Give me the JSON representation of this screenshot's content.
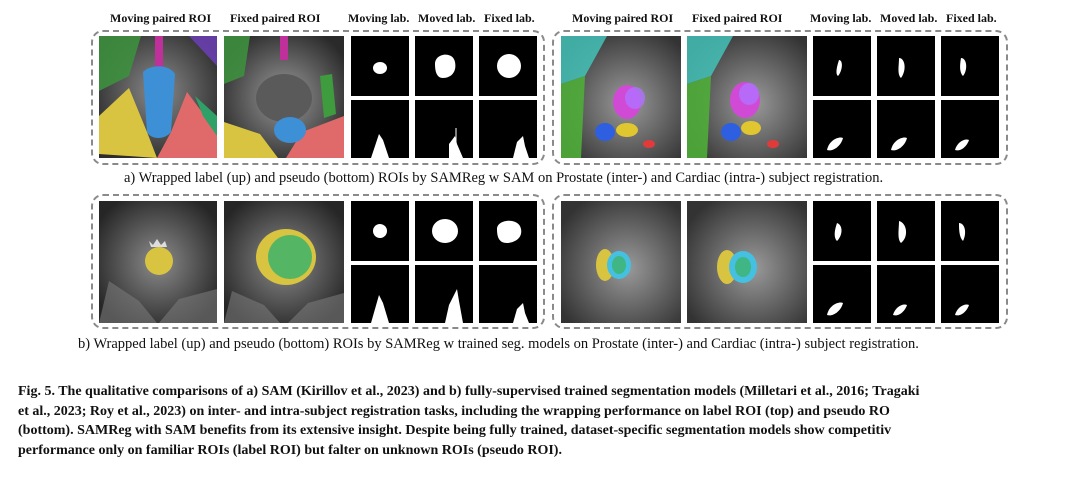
{
  "headers": {
    "prostate": [
      "Moving paired ROI",
      "Fixed paired ROI",
      "Moving lab.",
      "Moved lab.",
      "Fixed lab."
    ],
    "cardiac": [
      "Moving paired ROI",
      "Fixed paired ROI",
      "Moving lab.",
      "Moved lab.",
      "Fixed lab."
    ]
  },
  "captions": {
    "a": "a) Wrapped label (up) and pseudo (bottom) ROIs by SAMReg w SAM on Prostate (inter-) and Cardiac (intra-) subject registration.",
    "b": "b) Wrapped label (up) and pseudo (bottom) ROIs by SAMReg w trained seg. models on Prostate (inter-) and Cardiac (intra-) subject registration."
  },
  "figure_caption": {
    "lines": [
      "Fig. 5. The qualitative comparisons of a) SAM (Kirillov et al., 2023) and b) fully-supervised trained segmentation models (Milletari et al., 2016; Tragaki",
      "et al., 2023; Roy et al., 2023) on inter- and intra-subject registration tasks, including the wrapping performance on label ROI (top) and pseudo RO",
      "(bottom).  SAMReg with SAM benefits from its extensive insight.  Despite being fully trained, dataset-specific segmentation models show competitiv",
      "performance only on familiar ROIs (label ROI) but falter on unknown ROIs (pseudo ROI)."
    ]
  }
}
